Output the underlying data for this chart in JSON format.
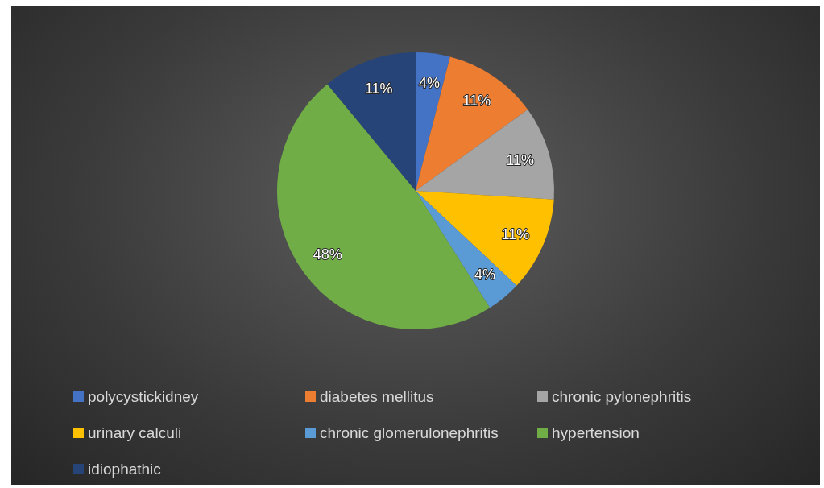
{
  "chart_data": {
    "type": "pie",
    "categories": [
      "polycystickidney",
      "diabetes mellitus",
      "chronic pylonephritis",
      "urinary calculi",
      "chronic glomerulonephritis",
      "hypertension",
      "idiophathic"
    ],
    "values": [
      4,
      11,
      11,
      11,
      4,
      48,
      11
    ],
    "value_labels": [
      "4%",
      "11%",
      "11%",
      "11%",
      "4%",
      "48%",
      "11%"
    ],
    "colors": [
      "#4472c4",
      "#ed7d31",
      "#a5a5a5",
      "#ffc000",
      "#5b9bd5",
      "#70ad47",
      "#264478"
    ],
    "legend": "bottom"
  }
}
